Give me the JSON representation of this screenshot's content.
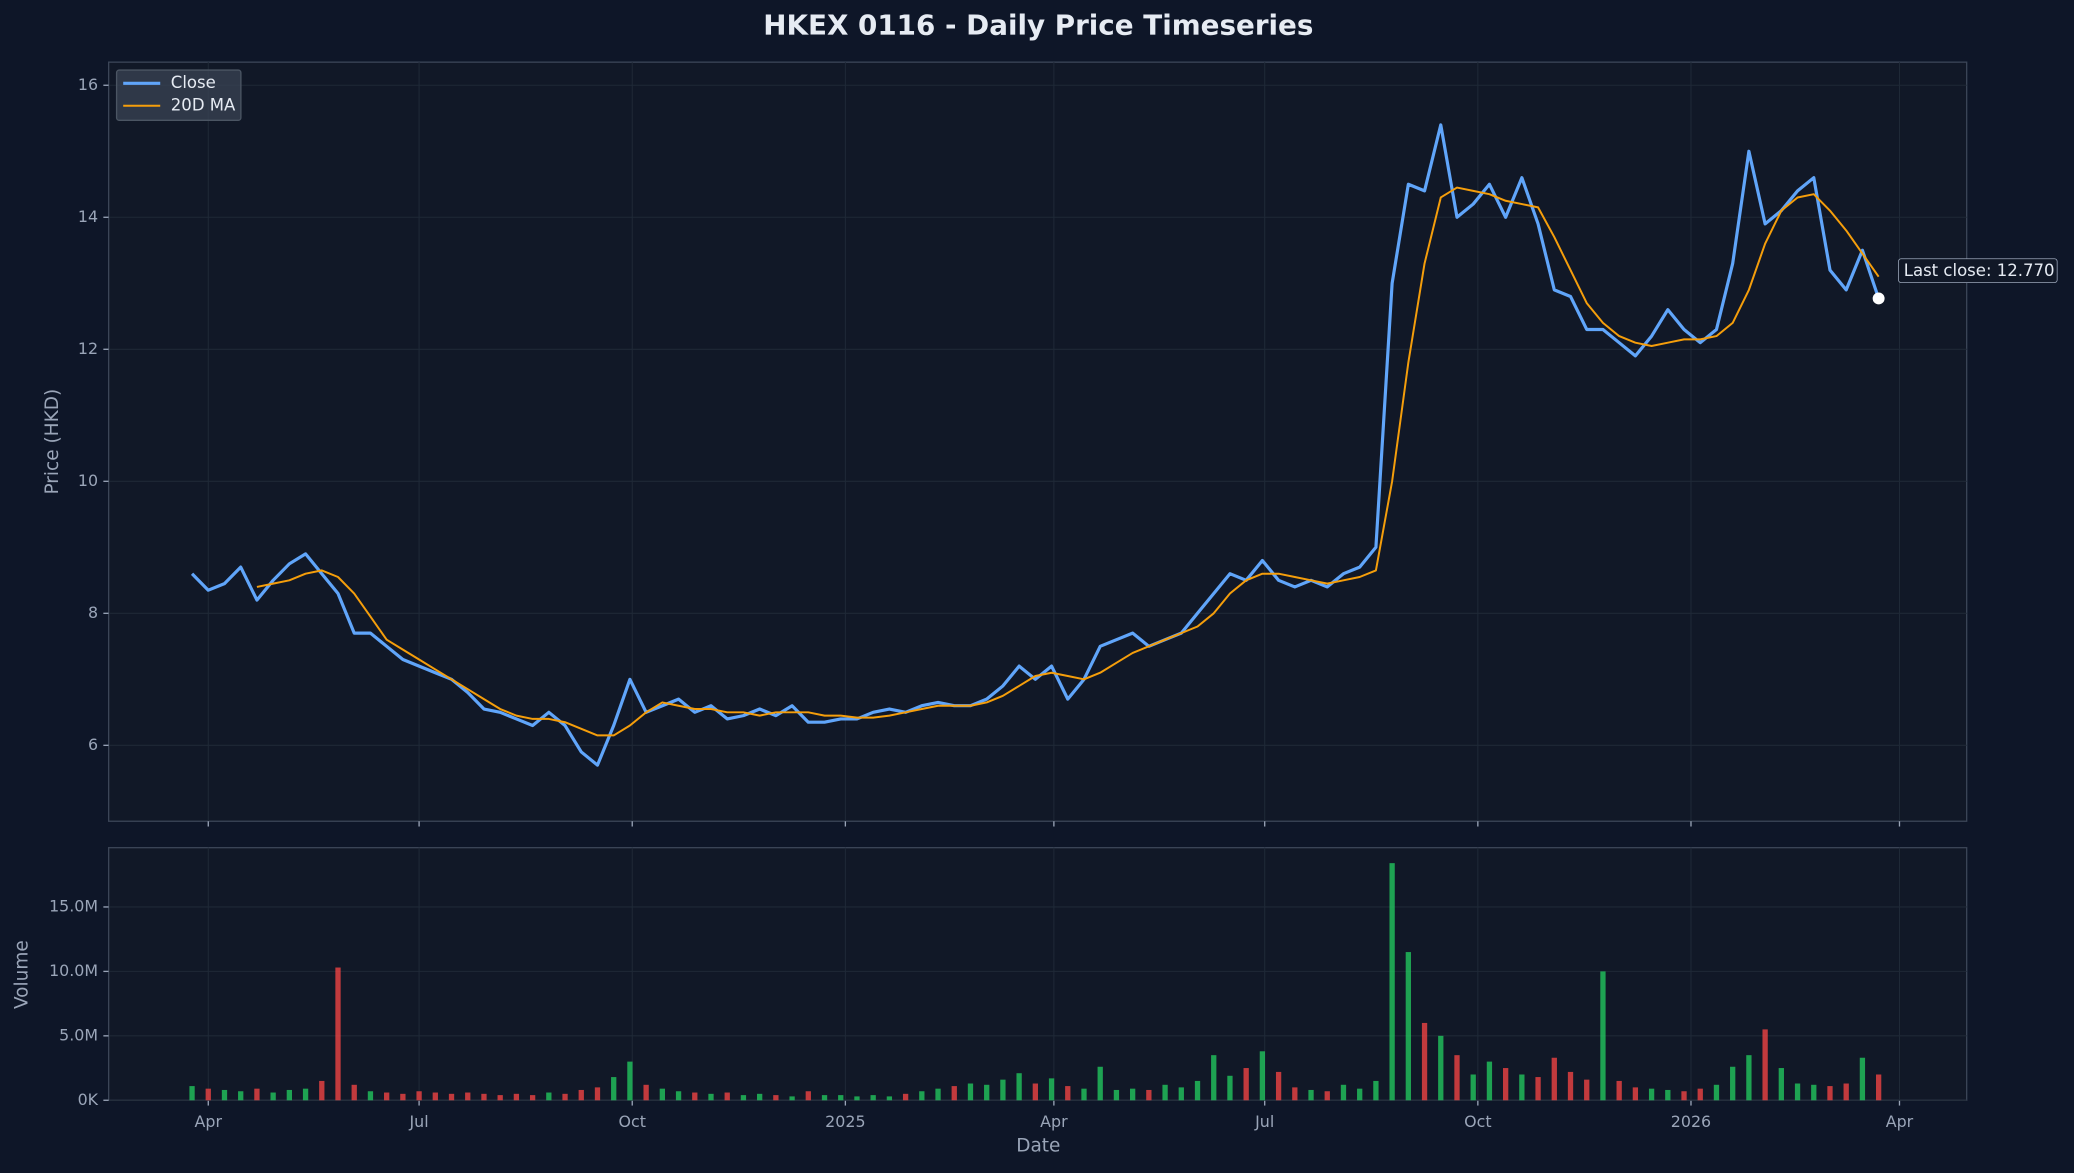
{
  "chart_data": [
    {
      "type": "line",
      "title": "HKEX 0116 - Daily Price Timeseries",
      "ylabel": "Price (HKD)",
      "x": [
        "2024-03-25",
        "2024-04-01",
        "2024-04-08",
        "2024-04-15",
        "2024-04-22",
        "2024-04-29",
        "2024-05-06",
        "2024-05-13",
        "2024-05-20",
        "2024-05-27",
        "2024-06-03",
        "2024-06-10",
        "2024-06-17",
        "2024-06-24",
        "2024-07-01",
        "2024-07-08",
        "2024-07-15",
        "2024-07-22",
        "2024-07-29",
        "2024-08-05",
        "2024-08-12",
        "2024-08-19",
        "2024-08-26",
        "2024-09-02",
        "2024-09-09",
        "2024-09-16",
        "2024-09-23",
        "2024-09-30",
        "2024-10-07",
        "2024-10-14",
        "2024-10-21",
        "2024-10-28",
        "2024-11-04",
        "2024-11-11",
        "2024-11-18",
        "2024-11-25",
        "2024-12-02",
        "2024-12-09",
        "2024-12-16",
        "2024-12-23",
        "2024-12-30",
        "2025-01-06",
        "2025-01-13",
        "2025-01-20",
        "2025-01-27",
        "2025-02-03",
        "2025-02-10",
        "2025-02-17",
        "2025-02-24",
        "2025-03-03",
        "2025-03-10",
        "2025-03-17",
        "2025-03-24",
        "2025-03-31",
        "2025-04-07",
        "2025-04-14",
        "2025-04-21",
        "2025-04-28",
        "2025-05-05",
        "2025-05-12",
        "2025-05-19",
        "2025-05-26",
        "2025-06-02",
        "2025-06-09",
        "2025-06-16",
        "2025-06-23",
        "2025-06-30",
        "2025-07-07",
        "2025-07-14",
        "2025-07-21",
        "2025-07-28",
        "2025-08-04",
        "2025-08-11",
        "2025-08-18",
        "2025-08-25",
        "2025-09-01",
        "2025-09-08",
        "2025-09-15",
        "2025-09-22",
        "2025-09-29",
        "2025-10-06",
        "2025-10-13",
        "2025-10-20",
        "2025-10-27",
        "2025-11-03",
        "2025-11-10",
        "2025-11-17",
        "2025-11-24",
        "2025-12-01",
        "2025-12-08",
        "2025-12-15",
        "2025-12-22",
        "2025-12-29",
        "2026-01-05",
        "2026-01-12",
        "2026-01-19",
        "2026-01-26",
        "2026-02-02",
        "2026-02-09",
        "2026-02-16",
        "2026-02-23",
        "2026-03-02",
        "2026-03-09",
        "2026-03-16",
        "2026-03-23"
      ],
      "series": [
        {
          "name": "Close",
          "color": "#60a5fa",
          "values": [
            8.6,
            8.35,
            8.45,
            8.7,
            8.2,
            8.5,
            8.75,
            8.9,
            8.6,
            8.3,
            7.7,
            7.7,
            7.5,
            7.3,
            7.2,
            7.1,
            7.0,
            6.8,
            6.55,
            6.5,
            6.4,
            6.3,
            6.5,
            6.3,
            5.9,
            5.7,
            6.3,
            7.0,
            6.5,
            6.6,
            6.7,
            6.5,
            6.6,
            6.4,
            6.45,
            6.55,
            6.45,
            6.6,
            6.35,
            6.35,
            6.4,
            6.4,
            6.5,
            6.55,
            6.5,
            6.6,
            6.65,
            6.6,
            6.6,
            6.7,
            6.9,
            7.2,
            7.0,
            7.2,
            6.7,
            7.0,
            7.5,
            7.6,
            7.7,
            7.5,
            7.6,
            7.7,
            8.0,
            8.3,
            8.6,
            8.5,
            8.8,
            8.5,
            8.4,
            8.5,
            8.4,
            8.6,
            8.7,
            9.0,
            13.0,
            14.5,
            14.4,
            15.4,
            14.0,
            14.2,
            14.5,
            14.0,
            14.6,
            13.9,
            12.9,
            12.8,
            12.3,
            12.3,
            12.1,
            11.9,
            12.2,
            12.6,
            12.3,
            12.1,
            12.3,
            13.3,
            15.0,
            13.9,
            14.1,
            14.4,
            14.6,
            13.2,
            12.9,
            13.5,
            12.77
          ]
        },
        {
          "name": "20D MA",
          "color": "#f59e0b",
          "values": [
            null,
            null,
            null,
            null,
            8.4,
            8.45,
            8.5,
            8.6,
            8.65,
            8.55,
            8.3,
            7.95,
            7.6,
            7.45,
            7.3,
            7.15,
            7.0,
            6.85,
            6.7,
            6.55,
            6.45,
            6.4,
            6.4,
            6.35,
            6.25,
            6.15,
            6.15,
            6.3,
            6.5,
            6.65,
            6.6,
            6.55,
            6.55,
            6.5,
            6.5,
            6.45,
            6.5,
            6.5,
            6.5,
            6.45,
            6.45,
            6.42,
            6.42,
            6.45,
            6.5,
            6.55,
            6.6,
            6.6,
            6.6,
            6.65,
            6.75,
            6.9,
            7.05,
            7.1,
            7.05,
            7.0,
            7.1,
            7.25,
            7.4,
            7.5,
            7.6,
            7.7,
            7.8,
            8.0,
            8.3,
            8.5,
            8.6,
            8.6,
            8.55,
            8.5,
            8.45,
            8.5,
            8.55,
            8.65,
            10.0,
            11.8,
            13.3,
            14.3,
            14.45,
            14.4,
            14.35,
            14.25,
            14.2,
            14.15,
            13.7,
            13.2,
            12.7,
            12.4,
            12.2,
            12.1,
            12.05,
            12.1,
            12.15,
            12.15,
            12.2,
            12.4,
            12.9,
            13.6,
            14.1,
            14.3,
            14.35,
            14.1,
            13.8,
            13.45,
            13.1
          ]
        }
      ],
      "annotation": "Last close: 12.770",
      "ylim": [
        4.85,
        16.35
      ],
      "yticks": [
        6,
        8,
        10,
        12,
        14,
        16
      ],
      "grid": true,
      "legend": "upper left"
    },
    {
      "type": "bar",
      "xlabel": "Date",
      "ylabel": "Volume",
      "up_color": "#22c55e",
      "down_color": "#ef4444",
      "values": [
        1100000,
        900000,
        800000,
        700000,
        900000,
        600000,
        800000,
        900000,
        1500000,
        10300000,
        1200000,
        700000,
        600000,
        500000,
        700000,
        600000,
        500000,
        600000,
        500000,
        400000,
        500000,
        400000,
        600000,
        500000,
        800000,
        1000000,
        1800000,
        3000000,
        1200000,
        900000,
        700000,
        600000,
        500000,
        600000,
        400000,
        500000,
        400000,
        300000,
        700000,
        400000,
        400000,
        300000,
        400000,
        300000,
        500000,
        700000,
        900000,
        1100000,
        1300000,
        1200000,
        1600000,
        2100000,
        1300000,
        1700000,
        1100000,
        900000,
        2600000,
        800000,
        900000,
        800000,
        1200000,
        1000000,
        1500000,
        3500000,
        1900000,
        2500000,
        3800000,
        2200000,
        1000000,
        800000,
        700000,
        1200000,
        900000,
        1500000,
        18400000,
        11500000,
        6000000,
        5000000,
        3500000,
        2000000,
        3000000,
        2500000,
        2000000,
        1800000,
        3300000,
        2200000,
        1600000,
        10000000,
        1500000,
        1000000,
        900000,
        800000,
        700000,
        900000,
        1200000,
        2600000,
        3500000,
        5500000,
        2500000,
        1300000,
        1200000,
        1100000,
        1300000,
        3300000,
        2000000
      ],
      "xlim": [
        "2024-02-18",
        "2026-04-30"
      ],
      "xticks": [
        {
          "value": "2024-04-01",
          "label": "Apr"
        },
        {
          "value": "2024-07-01",
          "label": "Jul"
        },
        {
          "value": "2024-10-01",
          "label": "Oct"
        },
        {
          "value": "2025-01-01",
          "label": "2025"
        },
        {
          "value": "2025-04-01",
          "label": "Apr"
        },
        {
          "value": "2025-07-01",
          "label": "Jul"
        },
        {
          "value": "2025-10-01",
          "label": "Oct"
        },
        {
          "value": "2026-01-01",
          "label": "2026"
        },
        {
          "value": "2026-04-01",
          "label": "Apr"
        }
      ],
      "ylim": [
        0,
        19600000
      ],
      "yticks": [
        {
          "value": 0,
          "label": "0K"
        },
        {
          "value": 5000000,
          "label": "5.0M"
        },
        {
          "value": 10000000,
          "label": "10.0M"
        },
        {
          "value": 15000000,
          "label": "15.0M"
        }
      ],
      "grid": true
    }
  ]
}
